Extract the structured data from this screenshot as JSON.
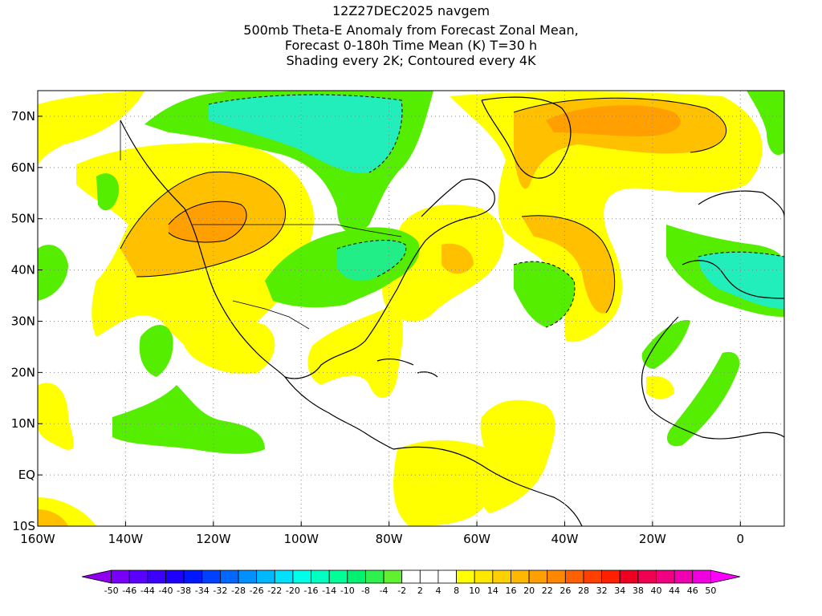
{
  "title_lines": [
    "12Z27DEC2025 navgem",
    "500mb Theta-E Anomaly from Forecast Zonal Mean,",
    "Forecast 0-180h Time Mean (K) T=30 h",
    "Shading every 2K; Contoured every 4K"
  ],
  "map": {
    "lon_range": [
      -160,
      10
    ],
    "lat_range": [
      -10,
      75
    ],
    "lon_ticks": [
      {
        "value": -160,
        "label": "160W"
      },
      {
        "value": -140,
        "label": "140W"
      },
      {
        "value": -120,
        "label": "120W"
      },
      {
        "value": -100,
        "label": "100W"
      },
      {
        "value": -80,
        "label": "80W"
      },
      {
        "value": -60,
        "label": "60W"
      },
      {
        "value": -40,
        "label": "40W"
      },
      {
        "value": -20,
        "label": "20W"
      },
      {
        "value": 0,
        "label": "0"
      }
    ],
    "lat_ticks": [
      {
        "value": -10,
        "label": "10S"
      },
      {
        "value": 0,
        "label": "EQ"
      },
      {
        "value": 10,
        "label": "10N"
      },
      {
        "value": 20,
        "label": "20N"
      },
      {
        "value": 30,
        "label": "30N"
      },
      {
        "value": 40,
        "label": "40N"
      },
      {
        "value": 50,
        "label": "50N"
      },
      {
        "value": 60,
        "label": "60N"
      },
      {
        "value": 70,
        "label": "70N"
      }
    ],
    "colors": {
      "yellow": "#ffff00",
      "yellow_orange": "#ffde00",
      "orange_light": "#ffc000",
      "orange": "#ffa000",
      "green": "#55ee00",
      "green_teal": "#22ee88",
      "teal": "#22eebb"
    }
  },
  "colorbar": {
    "labels": [
      "-50",
      "-46",
      "-44",
      "-40",
      "-38",
      "-34",
      "-32",
      "-28",
      "-26",
      "-22",
      "-20",
      "-16",
      "-14",
      "-10",
      "-8",
      "-4",
      "-2",
      "2",
      "4",
      "8",
      "10",
      "14",
      "16",
      "20",
      "22",
      "26",
      "28",
      "32",
      "34",
      "38",
      "40",
      "44",
      "46",
      "50"
    ],
    "colors": [
      "#9000f0",
      "#7800f8",
      "#5a00ff",
      "#3c00ff",
      "#1e00ff",
      "#0018ff",
      "#0040ff",
      "#0068ff",
      "#0090ff",
      "#00b8ff",
      "#00e0ff",
      "#00ffe8",
      "#00ffc0",
      "#00ff98",
      "#00f070",
      "#30f050",
      "#60f030",
      "#ffffff",
      "#ffffff",
      "#ffffff",
      "#ffff00",
      "#ffe800",
      "#ffd000",
      "#ffb800",
      "#ffa000",
      "#ff8800",
      "#ff6000",
      "#ff4000",
      "#ff2000",
      "#f00020",
      "#f00050",
      "#f00080",
      "#f000b0",
      "#f000e0",
      "#ff00ff"
    ]
  }
}
